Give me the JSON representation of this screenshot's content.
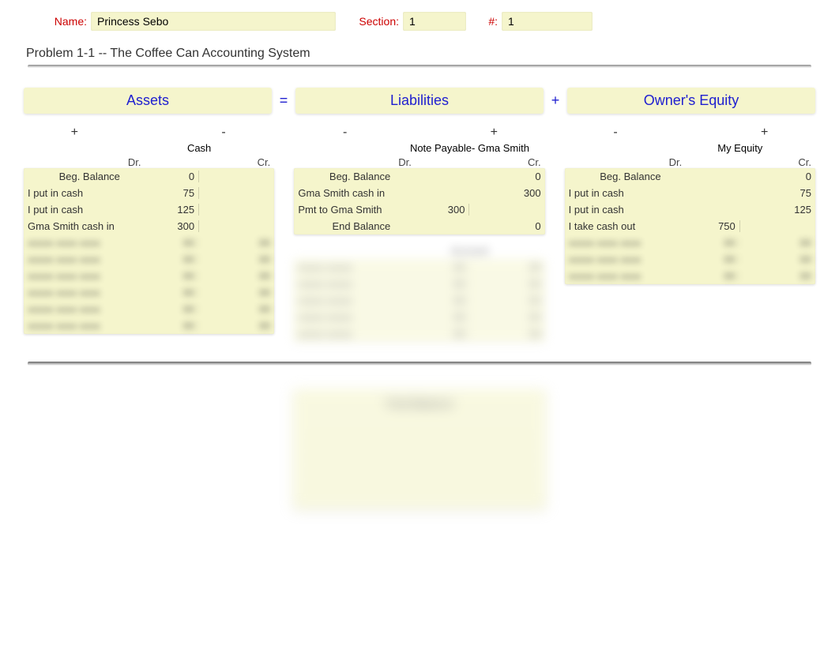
{
  "header": {
    "name_label": "Name:",
    "name_value": "Princess Sebo",
    "section_label": "Section:",
    "section_value": "1",
    "num_label": "#:",
    "num_value": "1"
  },
  "problem_title": "Problem 1-1 -- The Coffee Can Accounting System",
  "equation": {
    "assets": "Assets",
    "eq": "=",
    "liabilities": "Liabilities",
    "plus": "+",
    "owners_equity": "Owner's Equity"
  },
  "colors": {
    "field_bg": "#f5f5cc",
    "label_red": "#c00",
    "heading_blue": "#2020d0",
    "text": "#333333"
  },
  "columns": {
    "assets": {
      "sign_left": "+",
      "sign_right": "-",
      "accounts": [
        {
          "title": "Cash",
          "dr_label": "Dr.",
          "cr_label": "Cr.",
          "rows": [
            {
              "desc": "Beg. Balance",
              "desc_align": "right",
              "dr": "0",
              "cr": ""
            },
            {
              "desc": "I put in cash",
              "desc_align": "left",
              "dr": "75",
              "cr": ""
            },
            {
              "desc": "I put in cash",
              "desc_align": "left",
              "dr": "125",
              "cr": ""
            },
            {
              "desc": "Gma Smith cash in",
              "desc_align": "left",
              "dr": "300",
              "cr": ""
            }
          ],
          "blurred_rows": 6
        }
      ]
    },
    "liabilities": {
      "sign_left": "-",
      "sign_right": "+",
      "accounts": [
        {
          "title": "Note Payable- Gma Smith",
          "dr_label": "Dr.",
          "cr_label": "Cr.",
          "rows": [
            {
              "desc": "Beg. Balance",
              "desc_align": "right",
              "dr": "",
              "cr": "0"
            },
            {
              "desc": "Gma Smith cash in",
              "desc_align": "left",
              "dr": "",
              "cr": "300"
            },
            {
              "desc": "Pmt to Gma Smith",
              "desc_align": "left",
              "dr": "300",
              "cr": ""
            },
            {
              "desc": "End Balance",
              "desc_align": "right",
              "dr": "",
              "cr": "0"
            }
          ],
          "blurred_rows": 0
        },
        {
          "title": "blurred",
          "blurred": true,
          "blurred_rows": 5
        }
      ]
    },
    "owners_equity": {
      "sign_left": "-",
      "sign_right": "+",
      "accounts": [
        {
          "title": "My Equity",
          "dr_label": "Dr.",
          "cr_label": "Cr.",
          "rows": [
            {
              "desc": "Beg. Balance",
              "desc_align": "right",
              "dr": "",
              "cr": "0"
            },
            {
              "desc": "I put in cash",
              "desc_align": "left",
              "dr": "",
              "cr": "75"
            },
            {
              "desc": "I put in cash",
              "desc_align": "left",
              "dr": "",
              "cr": "125"
            },
            {
              "desc": "I take cash out",
              "desc_align": "left",
              "dr": "750",
              "cr": ""
            }
          ],
          "blurred_rows": 3
        }
      ]
    }
  }
}
